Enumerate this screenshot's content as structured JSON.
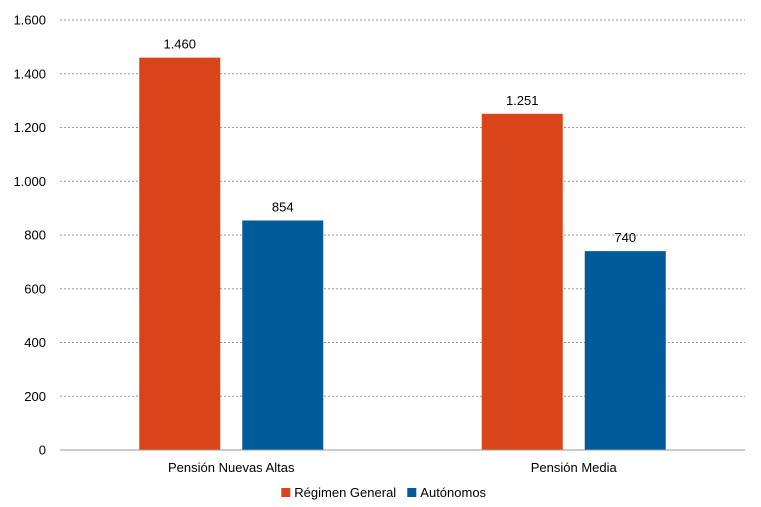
{
  "chart_data": {
    "type": "bar",
    "categories": [
      "Pensión Nuevas Altas",
      "Pensión Media"
    ],
    "series": [
      {
        "name": "Régimen General",
        "values": [
          1460,
          1251
        ],
        "color": "#d9441a",
        "labels": [
          "1.460",
          "1.251"
        ]
      },
      {
        "name": "Autónomos",
        "values": [
          854,
          740
        ],
        "color": "#005b9a",
        "labels": [
          "854",
          "740"
        ]
      }
    ],
    "yticks": [
      0,
      200,
      400,
      600,
      800,
      1000,
      1200,
      1400,
      1600
    ],
    "ytick_labels": [
      "0",
      "200",
      "400",
      "600",
      "800",
      "1.000",
      "1.200",
      "1.400",
      "1.600"
    ],
    "ylim": [
      0,
      1600
    ],
    "grid": true,
    "legend_position": "bottom"
  }
}
